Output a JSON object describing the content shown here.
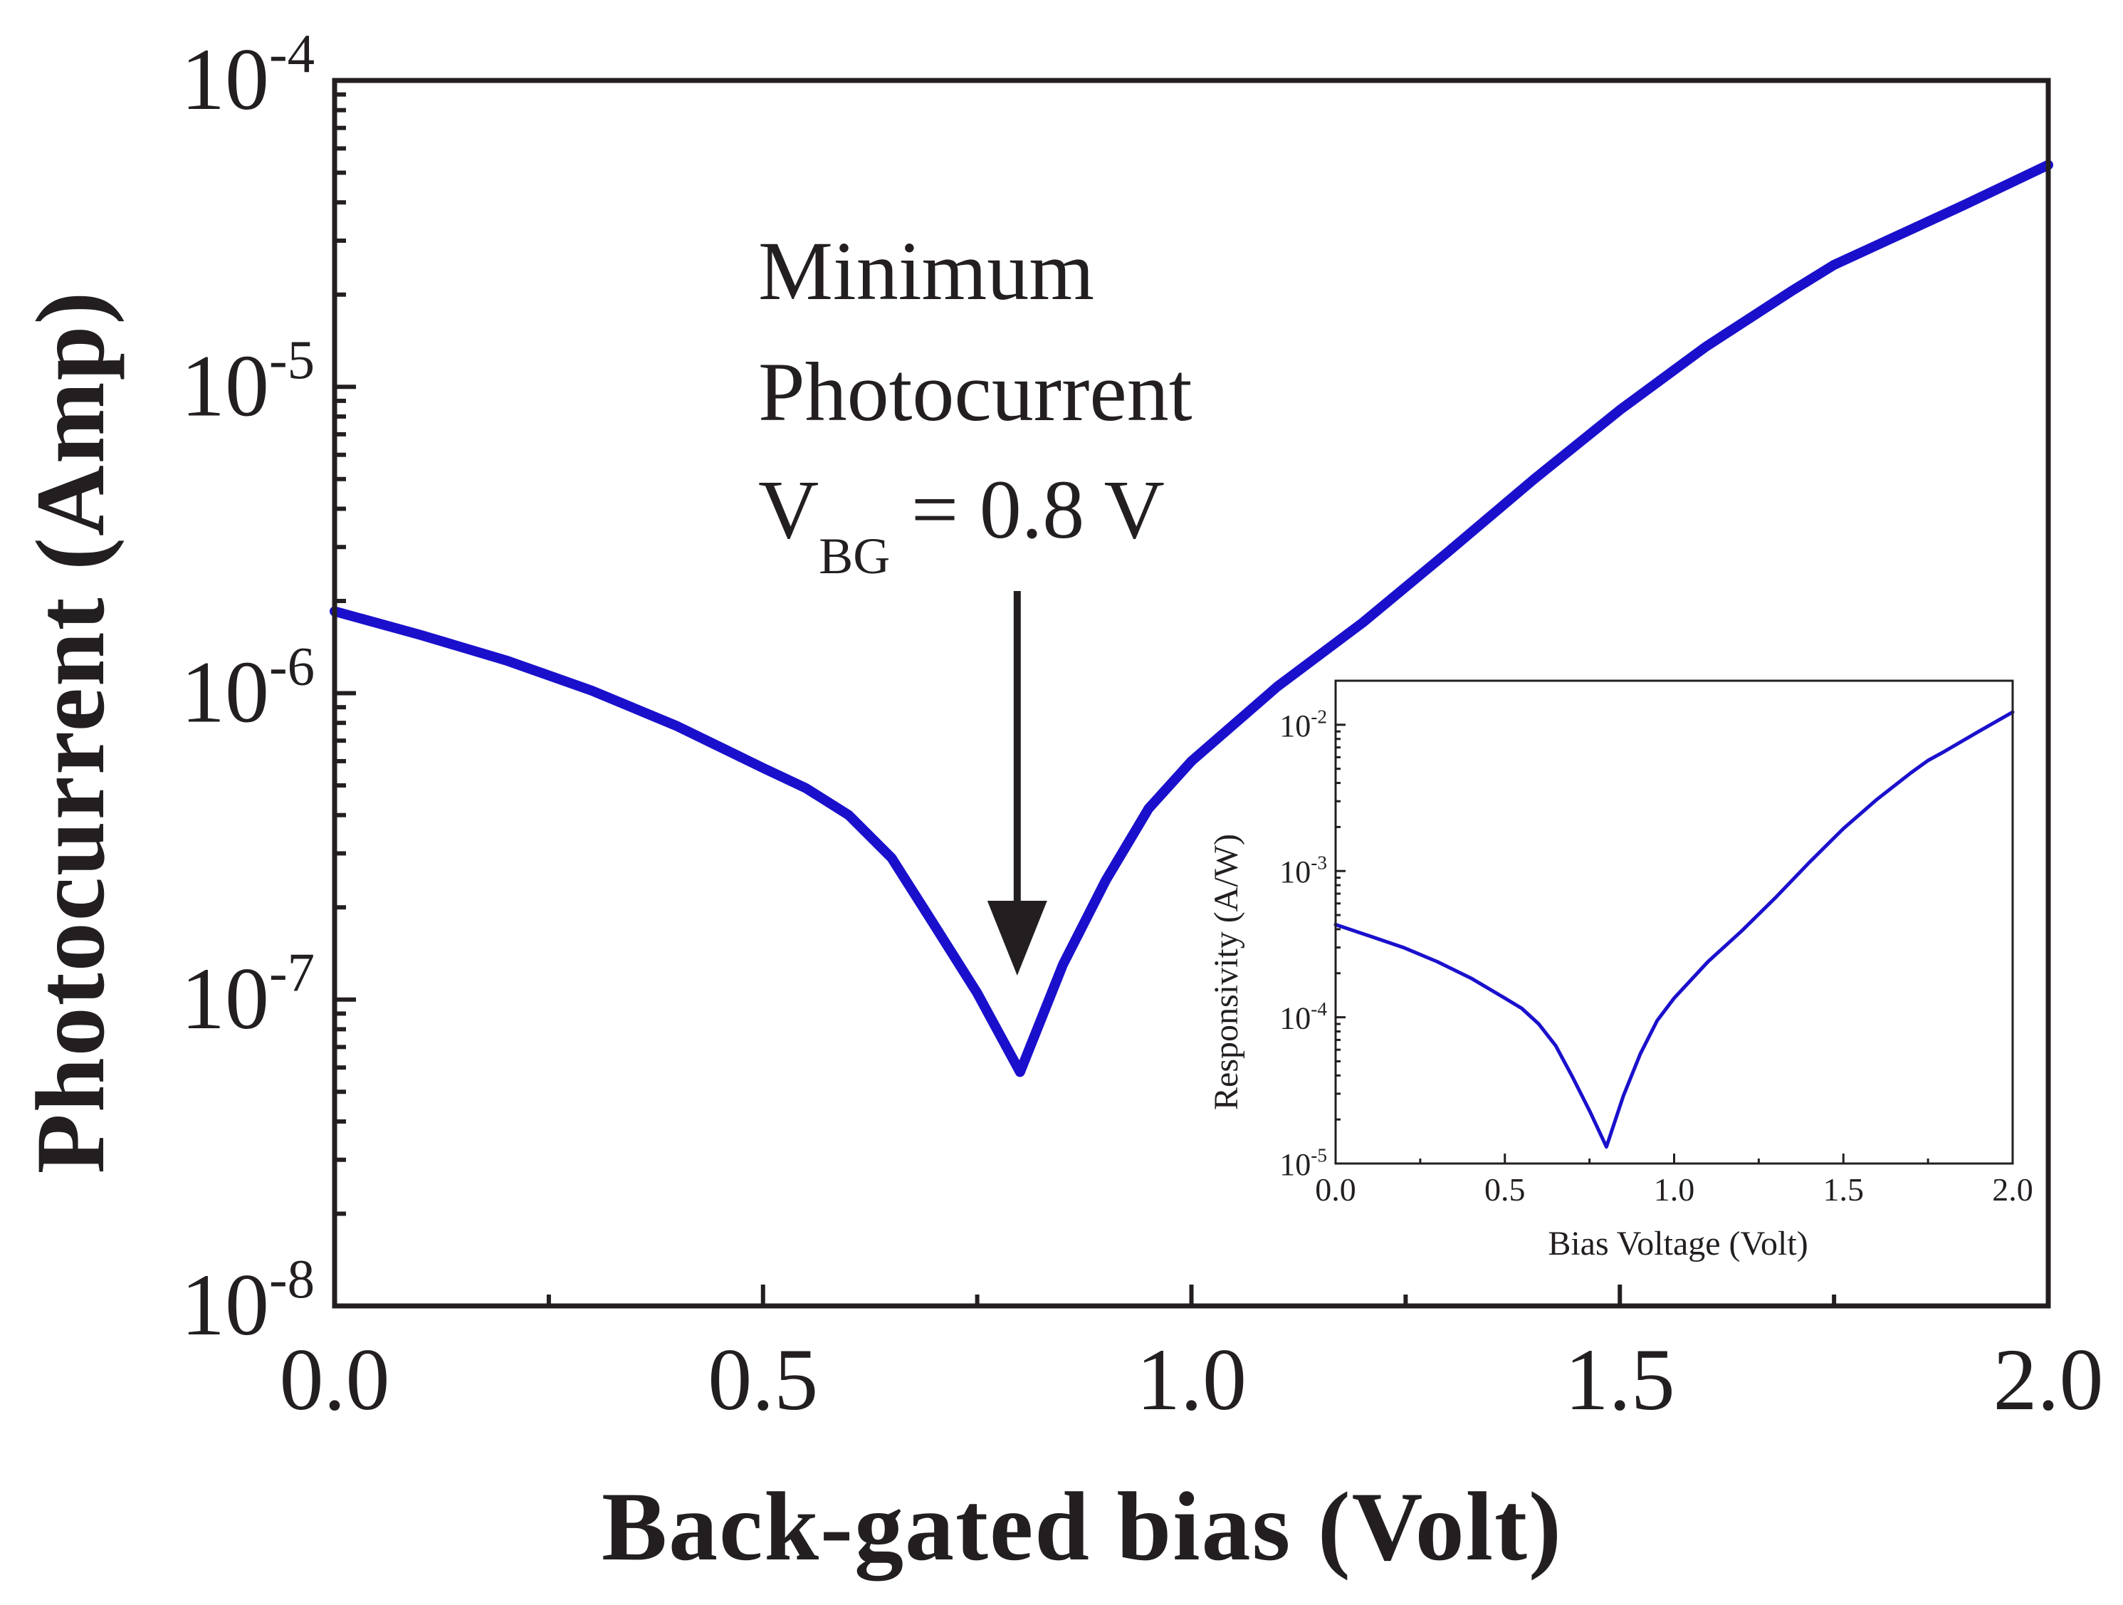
{
  "colors": {
    "line": "#1a10cc",
    "axis": "#231f20",
    "arrow": "#231f20",
    "text": "#231f20",
    "background": "#ffffff"
  },
  "chart_data": [
    {
      "id": "main",
      "type": "line",
      "xlabel": "Back-gated bias (Volt)",
      "ylabel": "Photocurrent (Amp)",
      "yscale": "log",
      "xlim": [
        0,
        2
      ],
      "ylim": [
        1e-08,
        0.0001
      ],
      "x_ticks": [
        0,
        0.5,
        1.0,
        1.5,
        2.0
      ],
      "x_tick_labels": [
        "0.0",
        "0.5",
        "1.0",
        "1.5",
        "2.0"
      ],
      "y_ticks": [
        1e-08,
        1e-07,
        1e-06,
        1e-05,
        0.0001
      ],
      "y_tick_labels": [
        {
          "base": "10",
          "exp": "-8"
        },
        {
          "base": "10",
          "exp": "-7"
        },
        {
          "base": "10",
          "exp": "-6"
        },
        {
          "base": "10",
          "exp": "-5"
        },
        {
          "base": "10",
          "exp": "-4"
        }
      ],
      "series": [
        {
          "name": "Photocurrent",
          "x": [
            0,
            0.1,
            0.2,
            0.3,
            0.4,
            0.5,
            0.55,
            0.6,
            0.65,
            0.7,
            0.75,
            0.8,
            0.85,
            0.9,
            0.95,
            1.0,
            1.1,
            1.2,
            1.3,
            1.4,
            1.5,
            1.6,
            1.7,
            1.75,
            1.8,
            1.9,
            2.0
          ],
          "y": [
            1.85e-06,
            1.55e-06,
            1.28e-06,
            1.02e-06,
            7.8e-07,
            5.7e-07,
            4.9e-07,
            4e-07,
            2.9e-07,
            1.75e-07,
            1.05e-07,
            5.8e-08,
            1.3e-07,
            2.45e-07,
            4.2e-07,
            6e-07,
            1.05e-06,
            1.7e-06,
            2.9e-06,
            5e-06,
            8.4e-06,
            1.35e-05,
            2.05e-05,
            2.5e-05,
            2.9e-05,
            3.9e-05,
            5.3e-05
          ]
        }
      ],
      "annotation": {
        "line1": "Minimum",
        "line2": "Photocurrent",
        "v_main": "V",
        "v_sub": "BG",
        "v_rest": " = 0.8 V",
        "arrow_x": 0.8
      }
    },
    {
      "id": "inset",
      "type": "line",
      "xlabel": "Bias Voltage (Volt)",
      "ylabel": "Responsivity (A/W)",
      "yscale": "log",
      "xlim": [
        0,
        2
      ],
      "ylim": [
        1e-05,
        0.02
      ],
      "x_ticks": [
        0,
        0.5,
        1.0,
        1.5,
        2.0
      ],
      "x_tick_labels": [
        "0.0",
        "0.5",
        "1.0",
        "1.5",
        "2.0"
      ],
      "y_ticks": [
        1e-05,
        0.0001,
        0.001,
        0.01
      ],
      "y_tick_labels": [
        {
          "base": "10",
          "exp": "-5"
        },
        {
          "base": "10",
          "exp": "-4"
        },
        {
          "base": "10",
          "exp": "-3"
        },
        {
          "base": "10",
          "exp": "-2"
        }
      ],
      "series": [
        {
          "name": "Responsivity",
          "x": [
            0,
            0.1,
            0.2,
            0.3,
            0.4,
            0.5,
            0.55,
            0.6,
            0.65,
            0.7,
            0.75,
            0.8,
            0.85,
            0.9,
            0.95,
            1.0,
            1.1,
            1.2,
            1.3,
            1.4,
            1.5,
            1.6,
            1.7,
            1.75,
            1.8,
            1.9,
            2.0
          ],
          "y": [
            0.00043,
            0.00036,
            0.0003,
            0.00024,
            0.000185,
            0.000135,
            0.000115,
            9e-05,
            6.4e-05,
            3.9e-05,
            2.3e-05,
            1.3e-05,
            2.9e-05,
            5.6e-05,
            9.5e-05,
            0.000135,
            0.00024,
            0.00039,
            0.00066,
            0.00115,
            0.00195,
            0.0031,
            0.0047,
            0.0057,
            0.0066,
            0.009,
            0.0122
          ]
        }
      ]
    }
  ]
}
